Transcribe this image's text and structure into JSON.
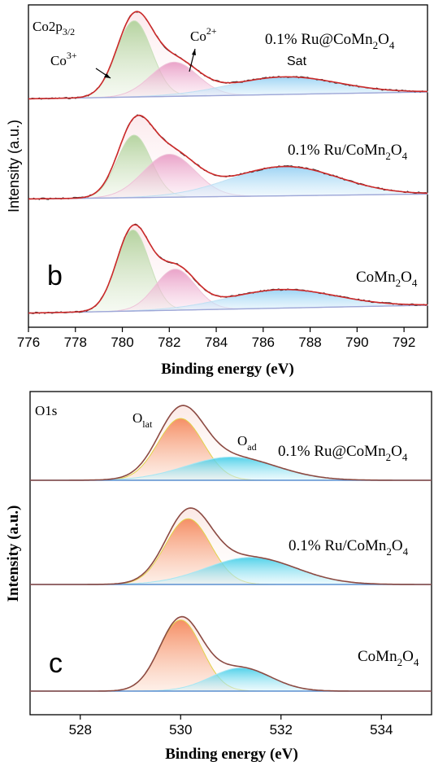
{
  "chart_data": [
    {
      "type": "line",
      "panel": "b",
      "region_main": "Co2p",
      "region_sub": "3/2",
      "xlabel": "Binding energy (eV)",
      "ylabel": "Intensity (a.u.)",
      "xlim": [
        776,
        793
      ],
      "xticks": [
        776,
        778,
        780,
        782,
        784,
        786,
        788,
        790,
        792
      ],
      "grid": false,
      "colors": {
        "fit": "#cc2a2a",
        "raw": "#333333",
        "co3": "#b9d7a6",
        "co2": "#e8a6c8",
        "sat": "#a6d4f0",
        "baseline": "#9ea7d8"
      },
      "peak_labels": {
        "co3_base": "Co",
        "co3_sup": "3+",
        "co2_base": "Co",
        "co2_sup": "2+",
        "sat": "Sat"
      },
      "traces": [
        {
          "name_base": "0.1% Ru@CoMn",
          "name_sub1": "2",
          "name_mid": "O",
          "name_sub2": "4",
          "components": [
            {
              "center": 780.5,
              "height": 0.78,
              "width": 0.75
            },
            {
              "center": 782.2,
              "height": 0.35,
              "width": 1.0
            },
            {
              "center": 786.9,
              "height": 0.18,
              "width": 2.3
            }
          ],
          "baseline": [
            0.03,
            0.1
          ]
        },
        {
          "name_base": "0.1% Ru/CoMn",
          "name_sub1": "2",
          "name_mid": "O",
          "name_sub2": "4",
          "components": [
            {
              "center": 780.5,
              "height": 0.64,
              "width": 0.72
            },
            {
              "center": 782.0,
              "height": 0.44,
              "width": 1.1
            },
            {
              "center": 786.9,
              "height": 0.3,
              "width": 2.3
            }
          ],
          "baseline": [
            0.03,
            0.08
          ]
        },
        {
          "name_base": "CoMn",
          "name_sub1": "2",
          "name_mid": "O",
          "name_sub2": "4",
          "components": [
            {
              "center": 780.45,
              "height": 0.83,
              "width": 0.7
            },
            {
              "center": 782.25,
              "height": 0.42,
              "width": 0.85
            },
            {
              "center": 786.8,
              "height": 0.19,
              "width": 2.3
            }
          ],
          "baseline": [
            0.02,
            0.1
          ]
        }
      ]
    },
    {
      "type": "line",
      "panel": "c",
      "region_main": "O1s",
      "xlabel": "Binding energy (eV)",
      "ylabel": "Intensity (a.u.)",
      "xlim": [
        527,
        535
      ],
      "xticks": [
        528,
        530,
        532,
        534
      ],
      "grid": false,
      "colors": {
        "fit": "#8c4a42",
        "lat": "#f5a07a",
        "lat_edge": "#e2d24a",
        "ad": "#5fd0ea",
        "baseline": "#5b8fd0"
      },
      "peak_labels": {
        "lat_base": "O",
        "lat_sub": "lat",
        "ad_base": "O",
        "ad_sub": "ad"
      },
      "traces": [
        {
          "name_base": "0.1% Ru@CoMn",
          "name_sub1": "2",
          "name_mid": "O",
          "name_sub2": "4",
          "components": [
            {
              "center": 530.0,
              "height": 0.8,
              "width": 0.45
            },
            {
              "center": 531.0,
              "height": 0.3,
              "width": 0.9
            }
          ]
        },
        {
          "name_base": "0.1% Ru/CoMn",
          "name_sub1": "2",
          "name_mid": "O",
          "name_sub2": "4",
          "components": [
            {
              "center": 530.15,
              "height": 0.85,
              "width": 0.45
            },
            {
              "center": 531.4,
              "height": 0.35,
              "width": 0.9
            }
          ]
        },
        {
          "name_base": "CoMn",
          "name_sub1": "2",
          "name_mid": "O",
          "name_sub2": "4",
          "components": [
            {
              "center": 530.0,
              "height": 0.92,
              "width": 0.42
            },
            {
              "center": 531.2,
              "height": 0.3,
              "width": 0.6
            }
          ]
        }
      ]
    }
  ]
}
